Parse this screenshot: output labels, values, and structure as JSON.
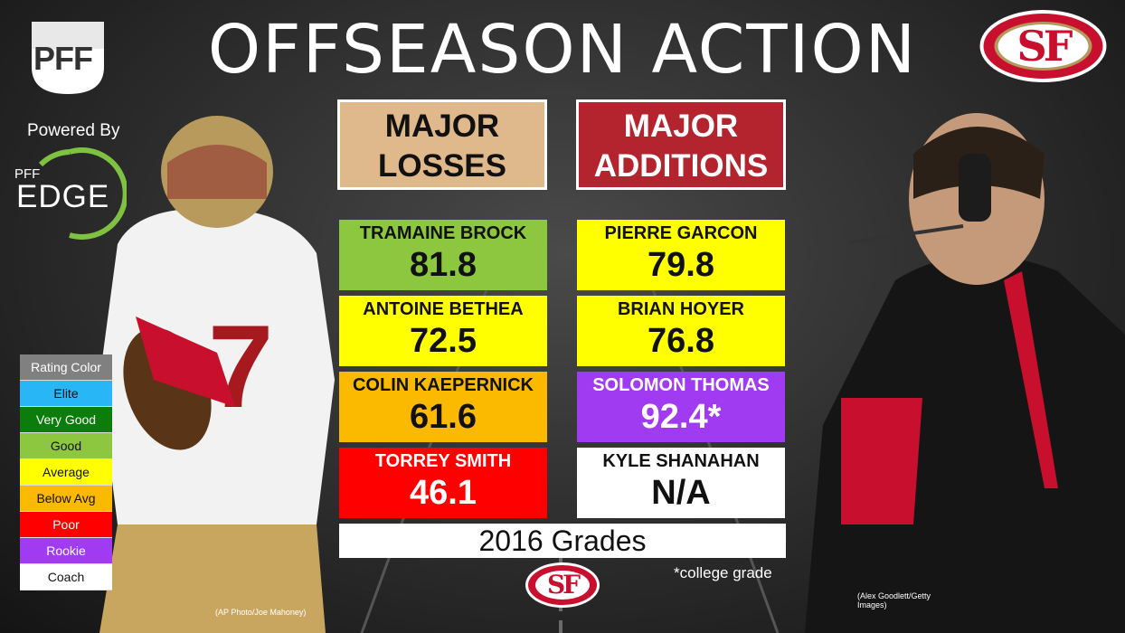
{
  "title": "OFFSEASON ACTION",
  "branding": {
    "pff": "PFF",
    "powered_by": "Powered By",
    "edge_small": "PFF",
    "edge_big": "EDGE"
  },
  "logos": {
    "team": "SF"
  },
  "headers": {
    "losses": "MAJOR LOSSES",
    "additions": "MAJOR ADDITIONS"
  },
  "losses": [
    {
      "name": "TRAMAINE BROCK",
      "grade": "81.8",
      "color": "#8dc63f"
    },
    {
      "name": "ANTOINE BETHEA",
      "grade": "72.5",
      "color": "#ffff00"
    },
    {
      "name": "COLIN KAEPERNICK",
      "grade": "61.6",
      "color": "#fbb900"
    },
    {
      "name": "TORREY SMITH",
      "grade": "46.1",
      "color": "#ff0000"
    }
  ],
  "additions": [
    {
      "name": "PIERRE GARCON",
      "grade": "79.8",
      "color": "#ffff00"
    },
    {
      "name": "BRIAN HOYER",
      "grade": "76.8",
      "color": "#ffff00"
    },
    {
      "name": "SOLOMON THOMAS",
      "grade": "92.4*",
      "color": "#a13bf2"
    },
    {
      "name": "KYLE SHANAHAN",
      "grade": "N/A",
      "color": "#ffffff"
    }
  ],
  "footer": {
    "grades_label": "2016 Grades",
    "note": "*college grade"
  },
  "legend": [
    {
      "label": "Rating Color",
      "color": "#808080",
      "text_color": "#ffffff"
    },
    {
      "label": "Elite",
      "color": "#29b6f6",
      "text_color": "#111111"
    },
    {
      "label": "Very Good",
      "color": "#0a7d0a",
      "text_color": "#ffffff"
    },
    {
      "label": "Good",
      "color": "#8dc63f",
      "text_color": "#111111"
    },
    {
      "label": "Average",
      "color": "#ffff00",
      "text_color": "#111111"
    },
    {
      "label": "Below Avg",
      "color": "#fbb900",
      "text_color": "#111111"
    },
    {
      "label": "Poor",
      "color": "#ff0000",
      "text_color": "#ffffff"
    },
    {
      "label": "Rookie",
      "color": "#a13bf2",
      "text_color": "#ffffff"
    },
    {
      "label": "Coach",
      "color": "#ffffff",
      "text_color": "#111111"
    }
  ],
  "credits": {
    "left": "(AP Photo/Joe Mahoney)",
    "right": "(Alex Goodlett/Getty Images)"
  }
}
